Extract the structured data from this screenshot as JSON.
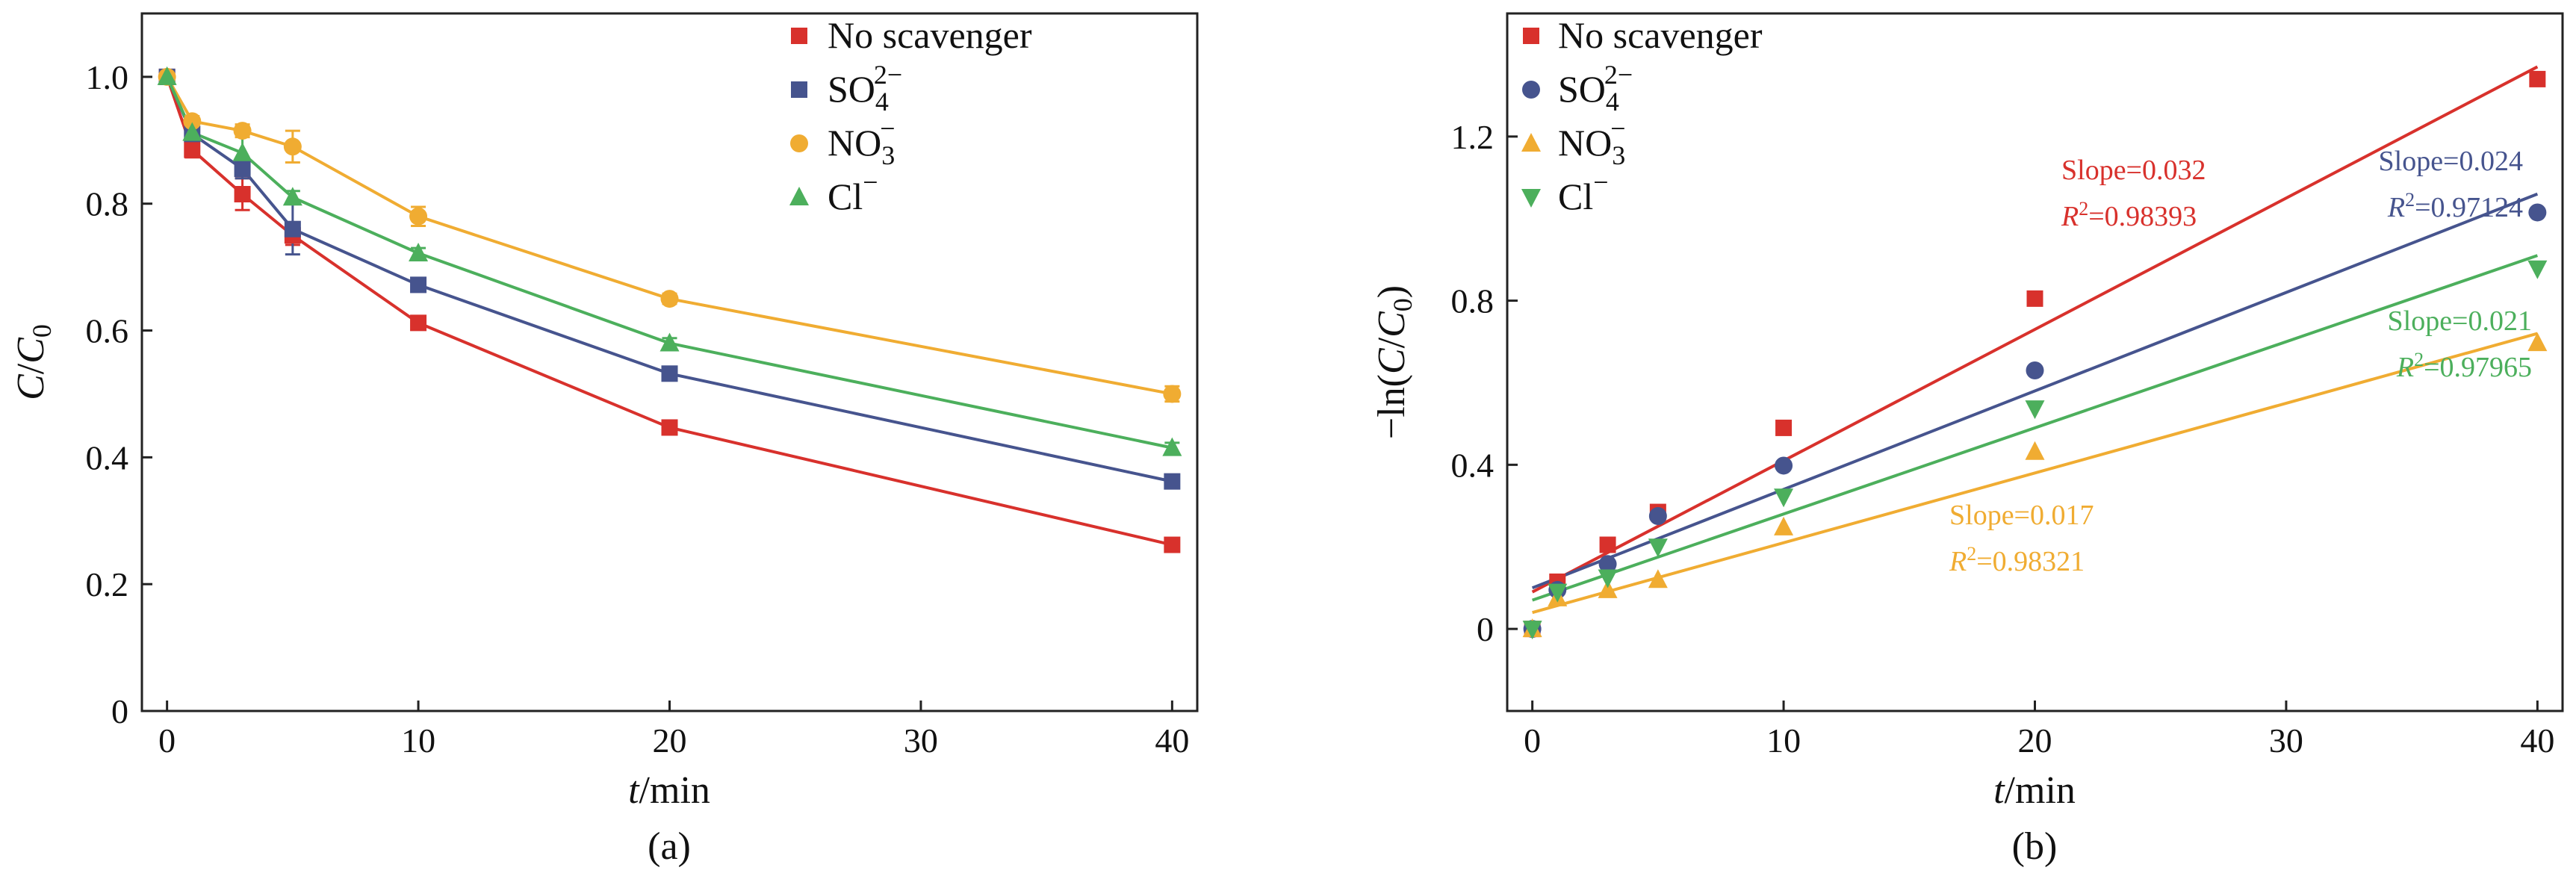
{
  "figure": {
    "panels": [
      "(a)",
      "(b)"
    ]
  },
  "colors": {
    "no_scavenger": "#d8312c",
    "so4": "#46548e",
    "no3": "#f0ac32",
    "cl": "#4caf5c"
  },
  "chart_data": [
    {
      "type": "line",
      "panel_label": "(a)",
      "title": "",
      "xlabel_italic": "t",
      "xlabel_rest": "/min",
      "ylabel": "C/C0",
      "xlim": [
        -1,
        41
      ],
      "ylim": [
        0,
        1.1
      ],
      "xticks": [
        0,
        10,
        20,
        30,
        40
      ],
      "xtick_labels": [
        "0",
        "10",
        "20",
        "30",
        "40"
      ],
      "yticks": [
        0,
        0.2,
        0.4,
        0.6,
        0.8,
        1.0
      ],
      "ytick_labels": [
        "0",
        "0.2",
        "0.4",
        "0.6",
        "0.8",
        "1.0"
      ],
      "legend_position": "top-right",
      "x": [
        0,
        1,
        3,
        5,
        10,
        20,
        40
      ],
      "series": [
        {
          "name": "No scavenger",
          "legend_base": "No scavenger",
          "legend_sub": "",
          "legend_sup": "",
          "marker": "square",
          "color_key": "no_scavenger",
          "values": [
            1.0,
            0.885,
            0.815,
            0.75,
            0.612,
            0.447,
            0.262
          ],
          "errors": [
            0.005,
            0.012,
            0.025,
            0.015,
            0.01,
            0.008,
            0.008
          ]
        },
        {
          "name": "SO4 2-",
          "legend_base": "SO",
          "legend_sub": "4",
          "legend_sup": "2−",
          "marker": "square",
          "color_key": "so4",
          "values": [
            1.0,
            0.91,
            0.855,
            0.76,
            0.672,
            0.532,
            0.362
          ],
          "errors": [
            0.005,
            0.01,
            0.015,
            0.04,
            0.008,
            0.008,
            0.008
          ]
        },
        {
          "name": "NO3 -",
          "legend_base": "NO",
          "legend_sub": "3",
          "legend_sup": "−",
          "marker": "circle",
          "color_key": "no3",
          "values": [
            1.0,
            0.93,
            0.915,
            0.89,
            0.78,
            0.65,
            0.5
          ],
          "errors": [
            0.005,
            0.008,
            0.01,
            0.025,
            0.015,
            0.008,
            0.012
          ]
        },
        {
          "name": "Cl-",
          "legend_base": "Cl",
          "legend_sub": "",
          "legend_sup": "−",
          "marker": "triangle-up",
          "color_key": "cl",
          "values": [
            1.0,
            0.912,
            0.88,
            0.81,
            0.722,
            0.58,
            0.415
          ],
          "errors": [
            0.005,
            0.012,
            0.035,
            0.01,
            0.008,
            0.008,
            0.008
          ]
        }
      ]
    },
    {
      "type": "scatter",
      "panel_label": "(b)",
      "title": "",
      "xlabel_italic": "t",
      "xlabel_rest": "/min",
      "ylabel": "-ln(C/C0)",
      "xlim": [
        -1,
        41
      ],
      "ylim": [
        -0.2,
        1.5
      ],
      "xticks": [
        0,
        10,
        20,
        30,
        40
      ],
      "xtick_labels": [
        "0",
        "10",
        "20",
        "30",
        "40"
      ],
      "yticks": [
        0,
        0.4,
        0.8,
        1.2
      ],
      "ytick_labels": [
        "0",
        "0.4",
        "0.8",
        "1.2"
      ],
      "legend_position": "top-left",
      "x": [
        0,
        1,
        3,
        5,
        10,
        20,
        40
      ],
      "series": [
        {
          "name": "No scavenger",
          "legend_base": "No scavenger",
          "legend_sub": "",
          "legend_sup": "",
          "marker": "square",
          "color_key": "no_scavenger",
          "values": [
            0.0,
            0.115,
            0.205,
            0.285,
            0.49,
            0.805,
            1.34
          ],
          "fit": {
            "slope": 0.032,
            "intercept": 0.09,
            "x_range": [
              0,
              40
            ]
          },
          "annotation": {
            "slope_text": "Slope=0.032",
            "r2_prefix": "R",
            "r2_text": "=0.98393"
          }
        },
        {
          "name": "SO4 2-",
          "legend_base": "SO",
          "legend_sub": "4",
          "legend_sup": "2−",
          "marker": "circle",
          "color_key": "so4",
          "values": [
            0.0,
            0.095,
            0.158,
            0.275,
            0.398,
            0.63,
            1.015
          ],
          "fit": {
            "slope": 0.024,
            "intercept": 0.1,
            "x_range": [
              0,
              40
            ]
          },
          "annotation": {
            "slope_text": "Slope=0.024",
            "r2_prefix": "R",
            "r2_text": "=0.97124"
          }
        },
        {
          "name": "NO3 -",
          "legend_base": "NO",
          "legend_sub": "3",
          "legend_sup": "−",
          "marker": "triangle-up",
          "color_key": "no3",
          "values": [
            0.0,
            0.075,
            0.095,
            0.12,
            0.248,
            0.432,
            0.697
          ],
          "fit": {
            "slope": 0.017,
            "intercept": 0.04,
            "x_range": [
              0,
              40
            ]
          },
          "annotation": {
            "slope_text": "Slope=0.017",
            "r2_prefix": "R",
            "r2_text": "=0.98321"
          }
        },
        {
          "name": "Cl-",
          "legend_base": "Cl",
          "legend_sub": "",
          "legend_sup": "−",
          "marker": "triangle-down",
          "color_key": "cl",
          "values": [
            0.0,
            0.09,
            0.125,
            0.2,
            0.322,
            0.537,
            0.878
          ],
          "fit": {
            "slope": 0.021,
            "intercept": 0.07,
            "x_range": [
              0,
              40
            ]
          },
          "annotation": {
            "slope_text": "Slope=0.021",
            "r2_prefix": "R",
            "r2_text": "=0.97965"
          }
        }
      ]
    }
  ]
}
